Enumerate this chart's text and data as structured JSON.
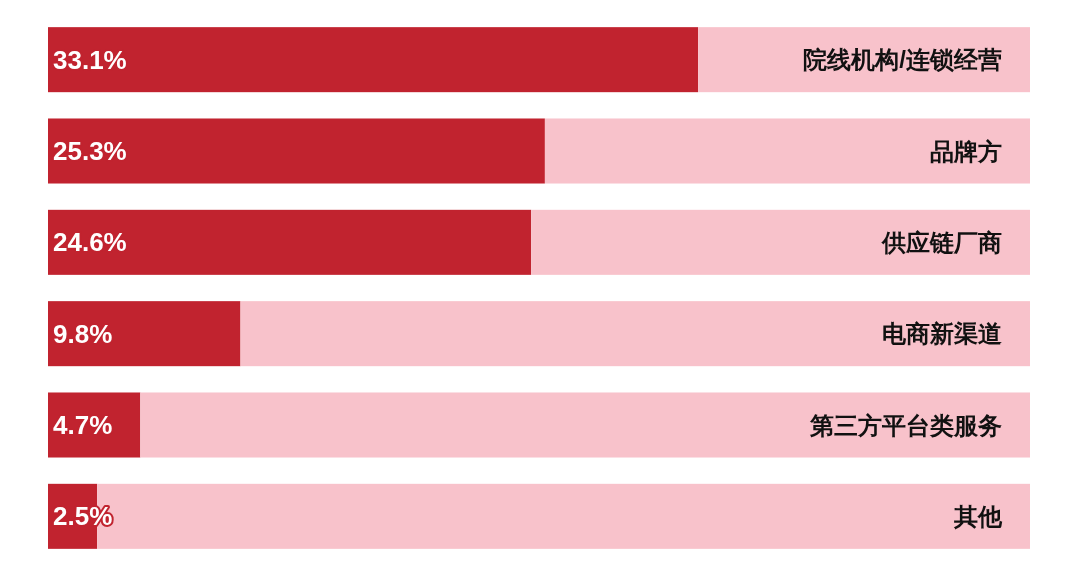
{
  "chart_data": {
    "type": "bar",
    "orientation": "horizontal",
    "stacked": true,
    "categories": [
      "院线机构/连锁经营",
      "品牌方",
      "供应链厂商",
      "电商新渠道",
      "第三方平台类服务",
      "其他"
    ],
    "series": [
      {
        "color": "#c1232f",
        "values": [
          33.1,
          25.3,
          24.6,
          9.8,
          4.7,
          2.5
        ],
        "value_labels": [
          "33.1%",
          "25.3%",
          "24.6%",
          "9.8%",
          "4.7%",
          "2.5%"
        ]
      },
      {
        "color": "#f8c2cb",
        "values": [
          16.9,
          24.7,
          25.4,
          40.2,
          45.3,
          47.5
        ]
      }
    ],
    "xlim": [
      0,
      50
    ],
    "tick_labels": "y"
  }
}
